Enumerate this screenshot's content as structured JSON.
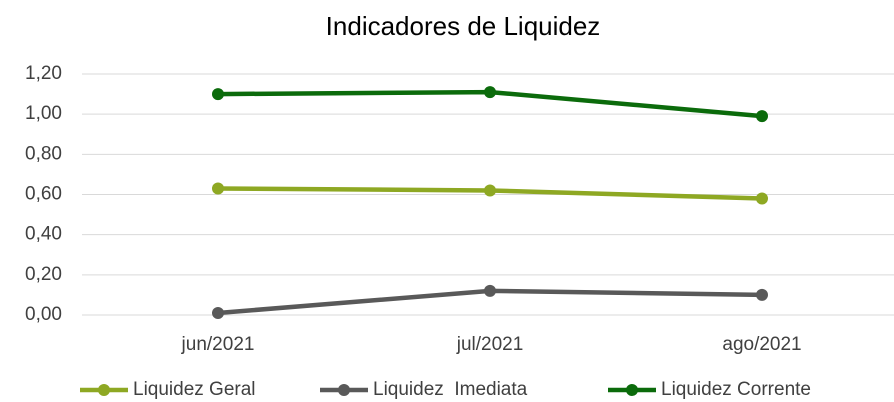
{
  "chart_data": {
    "type": "line",
    "title": "Indicadores de Liquidez",
    "categories": [
      "jun/2021",
      "jul/2021",
      "ago/2021"
    ],
    "series": [
      {
        "name": "Liquidez Geral",
        "color": "#8ea823",
        "values": [
          0.63,
          0.62,
          0.58
        ]
      },
      {
        "name": "Liquidez  Imediata",
        "color": "#595959",
        "values": [
          0.01,
          0.12,
          0.1
        ]
      },
      {
        "name": "Liquidez Corrente",
        "color": "#0b6b0b",
        "values": [
          1.1,
          1.11,
          0.99
        ]
      }
    ],
    "ylim": [
      0,
      1.2
    ],
    "yticks": [
      {
        "value": 0,
        "label": "0,00"
      },
      {
        "value": 0.2,
        "label": "0,20"
      },
      {
        "value": 0.4,
        "label": "0,40"
      },
      {
        "value": 0.6,
        "label": "0,60"
      },
      {
        "value": 0.8,
        "label": "0,80"
      },
      {
        "value": 1.0,
        "label": "1,00"
      },
      {
        "value": 1.2,
        "label": "1,20"
      }
    ],
    "grid": true,
    "legend": "bottom"
  }
}
